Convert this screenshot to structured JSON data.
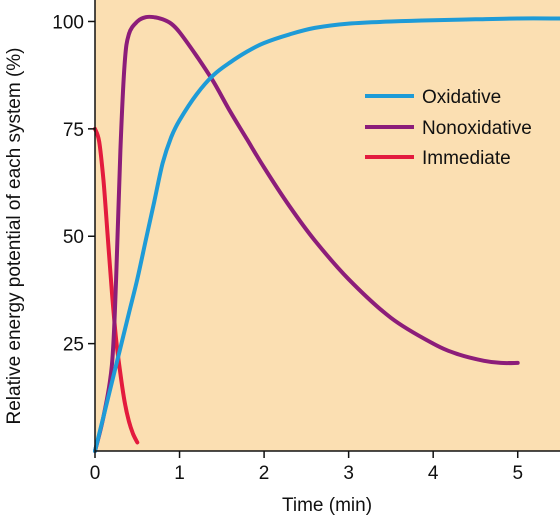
{
  "chart_data": {
    "type": "line",
    "title": "",
    "xlabel": "Time (min)",
    "ylabel": "Relative energy potential of each system (%)",
    "xlim": [
      0,
      5.5
    ],
    "ylim": [
      0,
      105
    ],
    "x_ticks": [
      0,
      1,
      2,
      3,
      4,
      5
    ],
    "y_ticks": [
      25,
      50,
      75,
      100
    ],
    "grid": false,
    "background_color": "#fbdfb2",
    "legend_position": "top-right",
    "series": [
      {
        "name": "Oxidative",
        "color": "#1e9bd7",
        "x": [
          0,
          0.1,
          0.2,
          0.3,
          0.4,
          0.5,
          0.6,
          0.7,
          0.8,
          0.9,
          1.0,
          1.2,
          1.4,
          1.6,
          1.8,
          2.0,
          2.3,
          2.6,
          3.0,
          3.5,
          4.0,
          4.5,
          5.0,
          5.5
        ],
        "y": [
          0,
          8,
          16,
          24,
          32,
          40,
          49,
          58,
          67,
          73,
          77,
          83,
          87.5,
          90.5,
          93,
          95,
          97,
          98.5,
          99.5,
          100,
          100.3,
          100.5,
          100.7,
          100.7
        ]
      },
      {
        "name": "Nonoxidative",
        "color": "#8c1d7a",
        "x": [
          0,
          0.1,
          0.2,
          0.25,
          0.3,
          0.35,
          0.4,
          0.5,
          0.6,
          0.7,
          0.8,
          0.9,
          1.0,
          1.2,
          1.4,
          1.6,
          1.8,
          2.0,
          2.3,
          2.6,
          3.0,
          3.5,
          4.0,
          4.3,
          4.6,
          4.8,
          5.0
        ],
        "y": [
          0,
          8,
          20,
          40,
          70,
          90,
          97,
          100,
          101,
          101,
          100.5,
          99.5,
          97.5,
          92,
          86,
          79,
          72.5,
          66,
          57,
          49,
          40,
          31,
          25,
          22.5,
          21,
          20.5,
          20.5
        ]
      },
      {
        "name": "Immediate",
        "color": "#e31b3e",
        "x": [
          0,
          0.05,
          0.1,
          0.15,
          0.2,
          0.25,
          0.3,
          0.35,
          0.4,
          0.45,
          0.5
        ],
        "y": [
          75,
          72,
          63,
          50,
          37,
          26,
          18,
          11.5,
          7,
          4,
          2
        ]
      }
    ]
  }
}
